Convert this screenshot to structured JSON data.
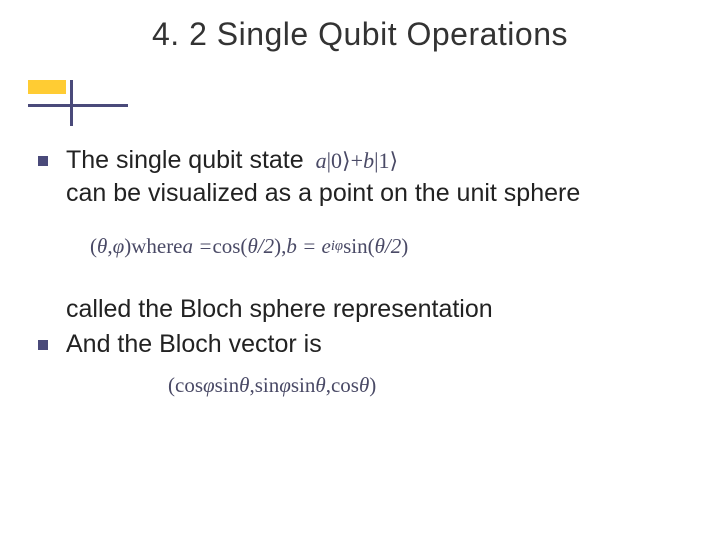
{
  "title": "4. 2 Single Qubit Operations",
  "accent_yellow": "#ffcc33",
  "accent_line": "#4a4a7a",
  "b1_text1": "The single qubit state",
  "b1_text2": "can be visualized as a point on the unit sphere",
  "f1_a": "a",
  "f1_ket0": "|0⟩",
  "f1_plus": " + ",
  "f1_b": "b",
  "f1_ket1": "|1⟩",
  "f2_open": "(",
  "f2_theta": "θ",
  "f2_comma": ", ",
  "f2_phi": "φ",
  "f2_close": ")",
  "f2_where": " where ",
  "f2_a_eq": "a = ",
  "f2_cos": "cos(",
  "f2_th2": "θ/2",
  "f2_cp": ")",
  "f2_c2": ",  ",
  "f2_b_eq": "b = e",
  "f2_exp": "iφ",
  "f2_sin": " sin(",
  "cont_line1": " called the Bloch sphere representation",
  "b2_text": "And the Bloch vector is",
  "f3_open": "(",
  "f3_cosphi": "cos ",
  "f3_phi1": "φ",
  "f3_sin1": " sin ",
  "f3_th1": "θ",
  "f3_c1": ", ",
  "f3_sinphi": "sin ",
  "f3_phi2": "φ",
  "f3_sin2": " sin ",
  "f3_th2": "θ",
  "f3_c2": ", ",
  "f3_cos": "cos ",
  "f3_th3": "θ",
  "f3_close": ")"
}
